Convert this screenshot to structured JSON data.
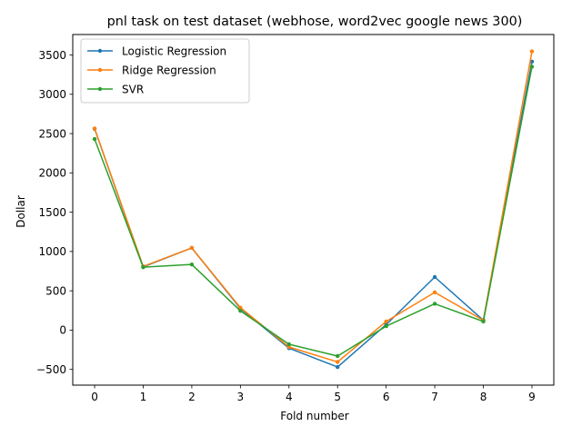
{
  "chart_data": {
    "type": "line",
    "title": "pnl task on test dataset (webhose, word2vec google news 300)",
    "xlabel": "Fold number",
    "ylabel": "Dollar",
    "x": [
      0,
      1,
      2,
      3,
      4,
      5,
      6,
      7,
      8,
      9
    ],
    "xticks": [
      0,
      1,
      2,
      3,
      4,
      5,
      6,
      7,
      8,
      9
    ],
    "xlim": [
      -0.45,
      9.45
    ],
    "yticks": [
      -500,
      0,
      500,
      1000,
      1500,
      2000,
      2500,
      3000,
      3500
    ],
    "ylim": [
      -700,
      3760
    ],
    "grid": false,
    "legend_position": "top-left",
    "series": [
      {
        "name": "Logistic Regression",
        "color": "#1f77b4",
        "marker": "point",
        "values": [
          2560,
          805,
          1045,
          275,
          -230,
          -470,
          70,
          675,
          125,
          3415
        ]
      },
      {
        "name": "Ridge Regression",
        "color": "#ff7f0e",
        "marker": "point",
        "values": [
          2565,
          810,
          1045,
          285,
          -215,
          -405,
          110,
          480,
          125,
          3545
        ]
      },
      {
        "name": "SVR",
        "color": "#2ca02c",
        "marker": "point",
        "values": [
          2430,
          800,
          835,
          245,
          -180,
          -330,
          50,
          335,
          110,
          3350
        ]
      }
    ]
  }
}
